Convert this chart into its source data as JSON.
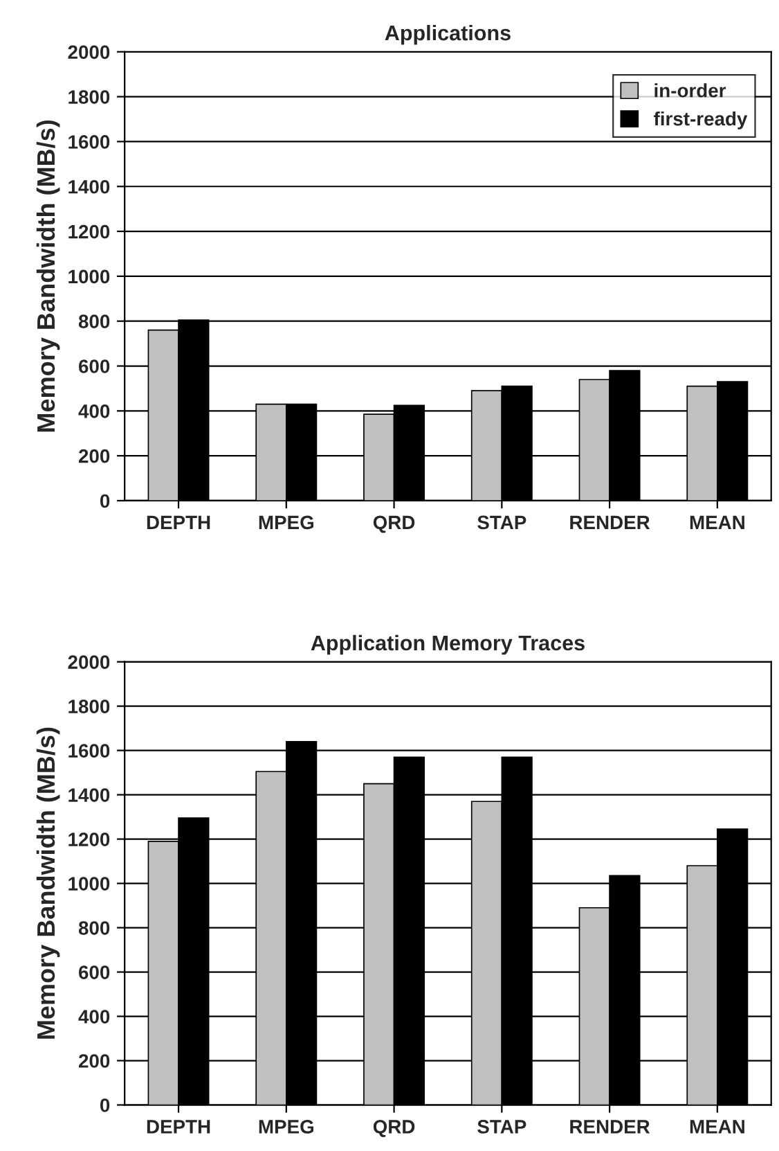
{
  "chart_data": [
    {
      "type": "bar",
      "title": "Applications",
      "ylabel": "Memory Bandwidth (MB/s)",
      "categories": [
        "DEPTH",
        "MPEG",
        "QRD",
        "STAP",
        "RENDER",
        "MEAN"
      ],
      "series": [
        {
          "name": "in-order",
          "color": "#c0c0c0",
          "values": [
            760,
            430,
            385,
            490,
            540,
            510
          ]
        },
        {
          "name": "first-ready",
          "color": "#000000",
          "values": [
            805,
            430,
            425,
            510,
            580,
            530
          ]
        }
      ],
      "ylim": [
        0,
        2000
      ],
      "yticks": [
        0,
        200,
        400,
        600,
        800,
        1000,
        1200,
        1400,
        1600,
        1800,
        2000
      ],
      "grid": "y",
      "legend": "top right"
    },
    {
      "type": "bar",
      "title": "Application Memory Traces",
      "ylabel": "Memory Bandwidth (MB/s)",
      "categories": [
        "DEPTH",
        "MPEG",
        "QRD",
        "STAP",
        "RENDER",
        "MEAN"
      ],
      "series": [
        {
          "color": "#c0c0c0",
          "values": [
            1190,
            1505,
            1450,
            1370,
            890,
            1080
          ]
        },
        {
          "color": "#000000",
          "values": [
            1295,
            1640,
            1570,
            1570,
            1035,
            1245
          ]
        }
      ],
      "ylim": [
        0,
        2000
      ],
      "yticks": [
        0,
        200,
        400,
        600,
        800,
        1000,
        1200,
        1400,
        1600,
        1800,
        2000
      ],
      "grid": "y"
    }
  ]
}
